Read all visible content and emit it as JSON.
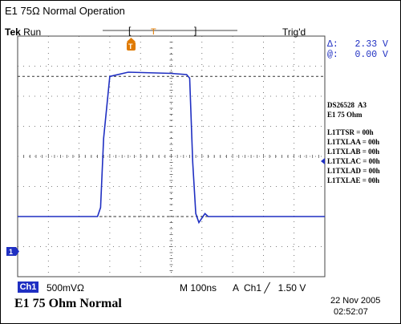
{
  "window": {
    "title": "E1 75Ω Normal Operation"
  },
  "status": {
    "brand": "Tek",
    "mode": "Run",
    "trigger_state": "Trig'd"
  },
  "trigger_marker": {
    "glyph": "T",
    "icon": "trigger-position-icon"
  },
  "cursor_readout": {
    "delta_label": "Δ:",
    "delta_value": "2.33 V",
    "at_label": "@:",
    "at_value": "0.00 V"
  },
  "side_panel": {
    "device": "DS26528  A3",
    "mode": "E1 75 Ohm",
    "registers": [
      "L1TTSR = 00h",
      "L1TXLAA = 00h",
      "L1TXLAB = 00h",
      "L1TXLAC = 00h",
      "L1TXLAD = 00h",
      "L1TXLAE = 00h"
    ]
  },
  "channel_marker": {
    "label": "1",
    "color": "#1f2fc2"
  },
  "settings": {
    "channel": "Ch1",
    "scale": "500mV",
    "impedance_symbol": "Ω",
    "timebase_prefix": "M",
    "timebase": "100ns",
    "trigger_prefix": "A",
    "trigger_channel": "Ch1",
    "trigger_slope_icon": "rising-edge-icon",
    "trigger_level": "1.50 V"
  },
  "caption": "E1 75 Ohm Normal",
  "timestamp": {
    "date": "22 Nov 2005",
    "time": "02:52:07"
  },
  "colors": {
    "trace": "#1f2fc2",
    "grid": "#444444",
    "accent": "#e07a00"
  },
  "chart_data": {
    "type": "line",
    "series": [
      {
        "x": [
          0,
          1.3,
          1.35,
          1.4,
          1.5,
          1.8,
          2.5,
          2.75,
          2.8,
          2.85,
          2.9,
          2.95,
          3.05,
          3.1,
          5
        ],
        "y": [
          0,
          0,
          0.15,
          1.3,
          2.33,
          2.4,
          2.38,
          2.36,
          2.3,
          0.9,
          0.05,
          -0.1,
          0.05,
          0,
          0
        ]
      }
    ],
    "xlim": [
      0,
      5
    ],
    "ylim": [
      -1,
      3
    ],
    "grid": true
  }
}
